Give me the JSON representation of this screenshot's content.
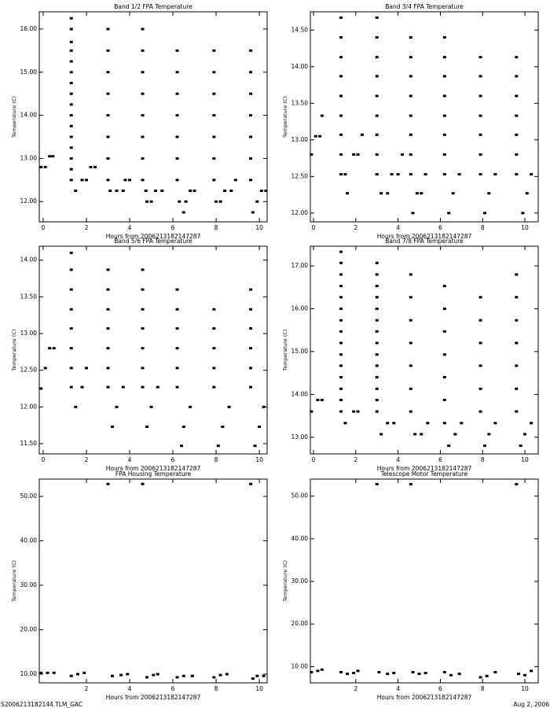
{
  "chart_data": [
    {
      "type": "scatter",
      "title": "Band 1/2 FPA Temperature",
      "xlabel": "Hours from 2006213182147287",
      "ylabel": "Temperature (C)",
      "color": "#000000",
      "xlim": [
        -0.18,
        10.36
      ],
      "xticks": [
        0,
        2,
        4,
        6,
        8,
        10
      ],
      "ylim": [
        11.53,
        16.4
      ],
      "yticks": [
        {
          "value": 12,
          "label": "12.00"
        },
        {
          "value": 13,
          "label": "13.00"
        },
        {
          "value": 14,
          "label": "14.00"
        },
        {
          "value": 15,
          "label": "15.00"
        },
        {
          "value": 16,
          "label": "16.00"
        }
      ],
      "x": [
        -0.1,
        0.1,
        0.3,
        0.45,
        1.3,
        1.3,
        1.3,
        1.3,
        1.3,
        1.3,
        1.3,
        1.3,
        1.3,
        1.3,
        1.3,
        1.3,
        1.3,
        1.3,
        1.3,
        1.3,
        1.5,
        1.8,
        2.0,
        2.2,
        2.4,
        3.0,
        3.0,
        3.0,
        3.0,
        3.0,
        3.0,
        3.0,
        3.0,
        3.1,
        3.4,
        3.7,
        3.8,
        4.0,
        4.6,
        4.6,
        4.6,
        4.6,
        4.6,
        4.6,
        4.6,
        4.6,
        4.75,
        4.8,
        5.0,
        5.2,
        5.5,
        6.2,
        6.2,
        6.2,
        6.2,
        6.2,
        6.2,
        6.2,
        6.3,
        6.5,
        6.6,
        6.8,
        7.0,
        7.9,
        7.9,
        7.9,
        7.9,
        7.9,
        7.9,
        7.9,
        8.0,
        8.2,
        8.4,
        8.7,
        8.9,
        9.6,
        9.6,
        9.6,
        9.6,
        9.6,
        9.6,
        9.6,
        9.7,
        9.9,
        10.1,
        10.3
      ],
      "values": [
        12.8,
        12.8,
        13.05,
        13.05,
        16.25,
        16.0,
        15.7,
        15.5,
        15.25,
        15.0,
        14.75,
        14.5,
        14.25,
        14.0,
        13.75,
        13.5,
        13.25,
        13.0,
        12.75,
        12.5,
        12.25,
        12.5,
        12.5,
        12.8,
        12.8,
        16.0,
        15.5,
        15.0,
        14.5,
        14.0,
        13.5,
        13.0,
        12.5,
        12.25,
        12.25,
        12.25,
        12.5,
        12.5,
        16.0,
        15.5,
        15.0,
        14.5,
        14.0,
        13.5,
        13.0,
        12.5,
        12.25,
        12.0,
        12.0,
        12.25,
        12.25,
        15.5,
        15.0,
        14.5,
        14.0,
        13.5,
        13.0,
        12.5,
        12.0,
        11.75,
        12.0,
        12.25,
        12.25,
        15.5,
        15.0,
        14.5,
        14.0,
        13.5,
        13.0,
        12.5,
        12.0,
        12.0,
        12.25,
        12.25,
        12.5,
        15.5,
        15.0,
        14.5,
        14.0,
        13.5,
        13.0,
        12.5,
        11.75,
        12.0,
        12.25,
        12.25
      ]
    },
    {
      "type": "scatter",
      "title": "Band 3/4 FPA Temperature",
      "xlabel": "Hours from 2006213182147287",
      "ylabel": "Temperature (C)",
      "color": "#000000",
      "xlim": [
        -0.15,
        10.63
      ],
      "xticks": [
        0,
        2,
        4,
        6,
        8,
        10
      ],
      "ylim": [
        11.88,
        14.75
      ],
      "yticks": [
        {
          "value": 12,
          "label": "12.00"
        },
        {
          "value": 12.5,
          "label": "12.50"
        },
        {
          "value": 13,
          "label": "13.00"
        },
        {
          "value": 13.5,
          "label": "13.50"
        },
        {
          "value": 14,
          "label": "14.00"
        },
        {
          "value": 14.5,
          "label": "14.50"
        }
      ],
      "x": [
        -0.1,
        0.1,
        0.3,
        0.4,
        1.3,
        1.3,
        1.3,
        1.3,
        1.3,
        1.3,
        1.3,
        1.3,
        1.3,
        1.5,
        1.6,
        1.9,
        2.1,
        2.3,
        3.0,
        3.0,
        3.0,
        3.0,
        3.0,
        3.0,
        3.0,
        3.0,
        3.0,
        3.2,
        3.5,
        3.7,
        4.0,
        4.2,
        4.6,
        4.6,
        4.6,
        4.6,
        4.6,
        4.6,
        4.6,
        4.6,
        4.7,
        4.9,
        5.1,
        5.3,
        6.2,
        6.2,
        6.2,
        6.2,
        6.2,
        6.2,
        6.2,
        6.2,
        6.4,
        6.6,
        6.9,
        7.9,
        7.9,
        7.9,
        7.9,
        7.9,
        7.9,
        7.9,
        8.1,
        8.3,
        8.6,
        9.6,
        9.6,
        9.6,
        9.6,
        9.6,
        9.6,
        9.6,
        9.9,
        10.1,
        10.3
      ],
      "values": [
        12.8,
        13.05,
        13.05,
        13.33,
        14.67,
        14.4,
        14.13,
        13.87,
        13.6,
        13.33,
        13.07,
        12.8,
        12.53,
        12.53,
        12.27,
        12.8,
        12.8,
        13.07,
        14.67,
        14.4,
        14.13,
        13.87,
        13.6,
        13.33,
        13.07,
        12.8,
        12.53,
        12.27,
        12.27,
        12.53,
        12.53,
        12.8,
        14.4,
        14.13,
        13.87,
        13.6,
        13.33,
        13.07,
        12.8,
        12.53,
        12.0,
        12.27,
        12.27,
        12.53,
        14.4,
        14.13,
        13.87,
        13.6,
        13.33,
        13.07,
        12.8,
        12.53,
        12.0,
        12.27,
        12.53,
        14.13,
        13.87,
        13.6,
        13.33,
        13.07,
        12.8,
        12.53,
        12.0,
        12.27,
        12.53,
        14.13,
        13.87,
        13.6,
        13.33,
        13.07,
        12.8,
        12.53,
        12.0,
        12.27,
        12.53
      ]
    },
    {
      "type": "scatter",
      "title": "Band 5/6 FPA Temperature",
      "xlabel": "Hours from 2006213182147287",
      "ylabel": "Temperature (C)",
      "color": "#000000",
      "xlim": [
        -0.18,
        10.36
      ],
      "xticks": [
        0,
        2,
        4,
        6,
        8,
        10
      ],
      "ylim": [
        11.36,
        14.19
      ],
      "yticks": [
        {
          "value": 11.5,
          "label": "11.50"
        },
        {
          "value": 12,
          "label": "12.00"
        },
        {
          "value": 12.5,
          "label": "12.50"
        },
        {
          "value": 13,
          "label": "13.00"
        },
        {
          "value": 13.5,
          "label": "13.50"
        },
        {
          "value": 14,
          "label": "14.00"
        }
      ],
      "x": [
        -0.1,
        0.1,
        0.3,
        0.5,
        1.3,
        1.3,
        1.3,
        1.3,
        1.3,
        1.3,
        1.3,
        1.3,
        1.5,
        1.8,
        2.0,
        3.0,
        3.0,
        3.0,
        3.0,
        3.0,
        3.0,
        3.0,
        3.2,
        3.4,
        3.7,
        4.6,
        4.6,
        4.6,
        4.6,
        4.6,
        4.6,
        4.6,
        4.8,
        5.0,
        5.3,
        6.2,
        6.2,
        6.2,
        6.2,
        6.2,
        6.2,
        6.4,
        6.5,
        6.8,
        7.9,
        7.9,
        7.9,
        7.9,
        7.9,
        8.1,
        8.3,
        8.6,
        9.6,
        9.6,
        9.6,
        9.6,
        9.6,
        9.6,
        9.8,
        10.0,
        10.2
      ],
      "values": [
        12.25,
        12.53,
        12.8,
        12.8,
        14.1,
        13.87,
        13.6,
        13.33,
        13.07,
        12.8,
        12.53,
        12.27,
        12.0,
        12.27,
        12.53,
        13.87,
        13.6,
        13.33,
        13.07,
        12.8,
        12.53,
        12.27,
        11.73,
        12.0,
        12.27,
        13.87,
        13.6,
        13.33,
        13.07,
        12.8,
        12.53,
        12.27,
        11.73,
        12.0,
        12.27,
        13.6,
        13.33,
        13.07,
        12.8,
        12.53,
        12.27,
        11.47,
        11.73,
        12.0,
        13.33,
        13.07,
        12.8,
        12.53,
        12.27,
        11.47,
        11.73,
        12.0,
        13.6,
        13.33,
        13.07,
        12.8,
        12.53,
        12.27,
        11.47,
        11.73,
        12.0
      ]
    },
    {
      "type": "scatter",
      "title": "Band 7/8 FPA Temperature",
      "xlabel": "Hours from 2006213182147287",
      "ylabel": "Temperature (C)",
      "color": "#000000",
      "xlim": [
        -0.15,
        10.63
      ],
      "xticks": [
        0,
        2,
        4,
        6,
        8,
        10
      ],
      "ylim": [
        12.61,
        17.46
      ],
      "yticks": [
        {
          "value": 13,
          "label": "13.00"
        },
        {
          "value": 14,
          "label": "14.00"
        },
        {
          "value": 15,
          "label": "15.00"
        },
        {
          "value": 16,
          "label": "16.00"
        },
        {
          "value": 17,
          "label": "17.00"
        }
      ],
      "x": [
        -0.1,
        0.2,
        0.4,
        1.3,
        1.3,
        1.3,
        1.3,
        1.3,
        1.3,
        1.3,
        1.3,
        1.3,
        1.3,
        1.3,
        1.3,
        1.3,
        1.3,
        1.3,
        1.5,
        1.9,
        2.1,
        3.0,
        3.0,
        3.0,
        3.0,
        3.0,
        3.0,
        3.0,
        3.0,
        3.0,
        3.0,
        3.0,
        3.0,
        3.0,
        3.0,
        3.2,
        3.5,
        3.8,
        4.6,
        4.6,
        4.6,
        4.6,
        4.6,
        4.6,
        4.6,
        4.8,
        5.1,
        5.4,
        6.2,
        6.2,
        6.2,
        6.2,
        6.2,
        6.2,
        6.2,
        6.4,
        6.7,
        7.0,
        7.9,
        7.9,
        7.9,
        7.9,
        7.9,
        7.9,
        8.1,
        8.3,
        8.6,
        9.6,
        9.6,
        9.6,
        9.6,
        9.6,
        9.6,
        9.6,
        9.8,
        10.0,
        10.3
      ],
      "values": [
        13.6,
        13.87,
        13.87,
        17.33,
        17.07,
        16.8,
        16.53,
        16.27,
        16.0,
        15.73,
        15.47,
        15.2,
        14.93,
        14.67,
        14.4,
        14.13,
        13.87,
        13.6,
        13.33,
        13.6,
        13.6,
        17.07,
        16.8,
        16.53,
        16.27,
        16.0,
        15.73,
        15.47,
        15.2,
        14.93,
        14.67,
        14.4,
        14.13,
        13.87,
        13.6,
        13.07,
        13.33,
        13.33,
        16.8,
        16.27,
        15.73,
        15.2,
        14.67,
        14.13,
        13.6,
        13.07,
        13.07,
        13.33,
        16.53,
        16.0,
        15.47,
        14.93,
        14.4,
        13.87,
        13.33,
        12.8,
        13.07,
        13.33,
        16.27,
        15.73,
        15.2,
        14.67,
        14.13,
        13.6,
        12.8,
        13.07,
        13.33,
        16.8,
        16.27,
        15.73,
        15.2,
        14.67,
        14.13,
        13.6,
        12.8,
        13.07,
        13.33
      ]
    },
    {
      "type": "scatter",
      "title": "FPA Housing Temperature",
      "xlabel": "Hours from 2006213182147287",
      "ylabel": "Temperature (C)",
      "color": "#000000",
      "xlim": [
        -0.18,
        10.36
      ],
      "xticks": [
        2,
        4,
        6,
        8,
        10
      ],
      "ylim": [
        8.05,
        53.9
      ],
      "yticks": [
        {
          "value": 10,
          "label": "10.00"
        },
        {
          "value": 20,
          "label": "20.00"
        },
        {
          "value": 30,
          "label": "30.00"
        },
        {
          "value": 40,
          "label": "40.00"
        },
        {
          "value": 50,
          "label": "50.00"
        }
      ],
      "x": [
        -0.1,
        0.2,
        0.5,
        1.3,
        1.6,
        1.9,
        3.0,
        3.2,
        3.6,
        3.9,
        4.6,
        4.8,
        5.1,
        5.3,
        6.2,
        6.5,
        6.9,
        7.9,
        8.2,
        8.5,
        9.6,
        9.7,
        9.9,
        10.2
      ],
      "values": [
        10.3,
        10.3,
        10.3,
        9.6,
        10.0,
        10.3,
        52.8,
        9.6,
        9.8,
        10.0,
        52.8,
        9.3,
        9.8,
        10.0,
        9.3,
        9.6,
        9.6,
        9.3,
        9.8,
        10.0,
        52.8,
        9.0,
        9.6,
        9.6
      ]
    },
    {
      "type": "scatter",
      "title": "Telescope Motor Temperature",
      "xlabel": "Hours from 2006213182147287",
      "ylabel": "Temperature (C)",
      "color": "#000000",
      "xlim": [
        -0.15,
        10.63
      ],
      "xticks": [
        2,
        4,
        6,
        8,
        10
      ],
      "ylim": [
        6.2,
        54.0
      ],
      "yticks": [
        {
          "value": 10,
          "label": "10.00"
        },
        {
          "value": 20,
          "label": "20.00"
        },
        {
          "value": 30,
          "label": "30.00"
        },
        {
          "value": 40,
          "label": "40.00"
        },
        {
          "value": 50,
          "label": "50.00"
        }
      ],
      "x": [
        -0.1,
        0.2,
        0.4,
        1.3,
        1.6,
        1.9,
        2.1,
        3.0,
        3.1,
        3.5,
        3.8,
        4.6,
        4.7,
        5.0,
        5.3,
        6.2,
        6.5,
        6.9,
        7.9,
        8.2,
        8.6,
        9.6,
        9.7,
        10.0,
        10.3
      ],
      "values": [
        8.7,
        9.0,
        9.3,
        8.7,
        8.3,
        8.5,
        9.0,
        52.8,
        8.7,
        8.3,
        8.5,
        52.8,
        8.7,
        8.3,
        8.5,
        8.7,
        8.0,
        8.3,
        7.5,
        7.8,
        8.7,
        52.8,
        8.3,
        8.0,
        9.0
      ]
    }
  ],
  "footer": {
    "left": "S2006213182144.TLM_GAC",
    "right": "Aug  2, 2006"
  }
}
